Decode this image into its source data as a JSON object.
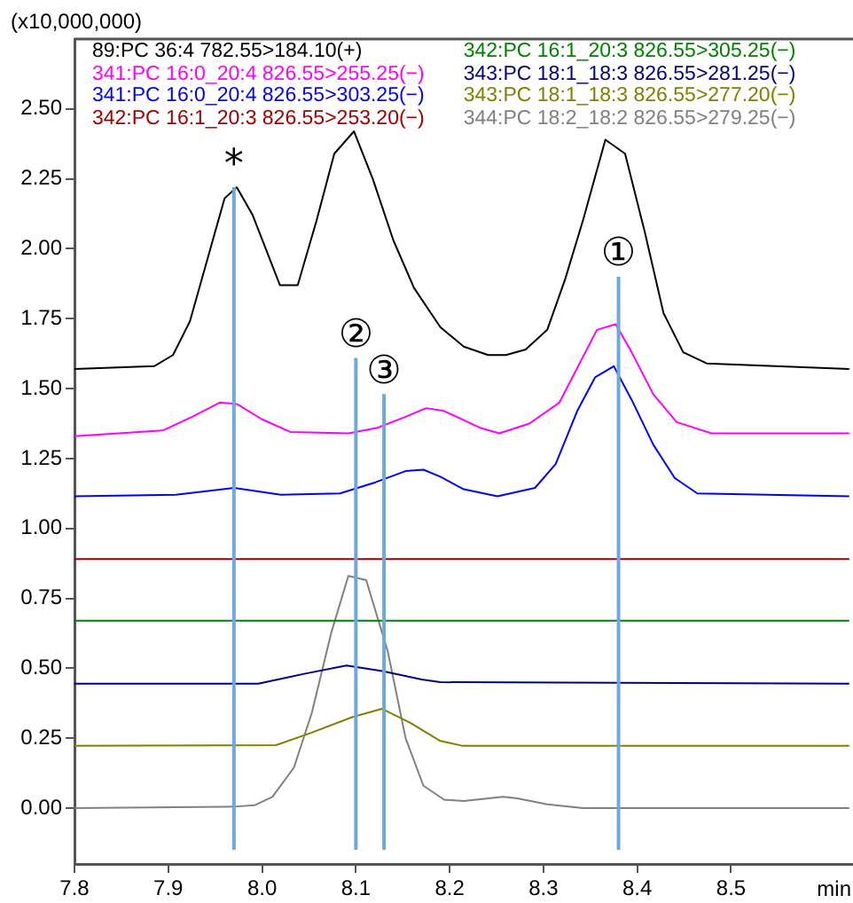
{
  "chart_data": {
    "type": "line",
    "xlabel": "min",
    "ylabel": "(x10,000,000)",
    "xlim": [
      7.8,
      8.63
    ],
    "ylim": [
      -0.2,
      2.75
    ],
    "xticks": [
      7.8,
      7.9,
      {
        "value": 8,
        "label": "8.0"
      },
      8.1,
      8.2,
      8.3,
      8.4,
      8.5
    ],
    "yticks": [
      {
        "value": 0,
        "label": "0.00"
      },
      {
        "value": 0.25,
        "label": "0.25"
      },
      {
        "value": 0.5,
        "label": "0.50"
      },
      {
        "value": 0.75,
        "label": "0.75"
      },
      {
        "value": 1,
        "label": "1.00"
      },
      {
        "value": 1.25,
        "label": "1.25"
      },
      {
        "value": 1.5,
        "label": "1.50"
      },
      {
        "value": 1.75,
        "label": "1.75"
      },
      {
        "value": 2,
        "label": "2.00"
      },
      {
        "value": 2.25,
        "label": "2.25"
      },
      {
        "value": 2.5,
        "label": "2.50"
      }
    ],
    "grid": false,
    "legend": "top",
    "marker": "none",
    "line_style": "solid",
    "series": [
      {
        "name": "89:PC 36:4 782.55>184.10(+)",
        "color": "#000000",
        "x": [
          7.8,
          7.885,
          7.905,
          7.923,
          7.96,
          7.973,
          7.99,
          8.019,
          8.038,
          8.058,
          8.077,
          8.098,
          8.118,
          8.14,
          8.162,
          8.19,
          8.215,
          8.241,
          8.26,
          8.281,
          8.304,
          8.323,
          8.342,
          8.366,
          8.387,
          8.408,
          8.428,
          8.449,
          8.474,
          8.626
        ],
        "values": [
          1.57,
          1.58,
          1.62,
          1.74,
          2.18,
          2.22,
          2.12,
          1.87,
          1.87,
          2.1,
          2.34,
          2.42,
          2.25,
          2.03,
          1.86,
          1.72,
          1.65,
          1.62,
          1.62,
          1.64,
          1.71,
          1.89,
          2.1,
          2.39,
          2.34,
          2.06,
          1.77,
          1.63,
          1.59,
          1.57
        ]
      },
      {
        "name": "341:PC 16:0_20:4 826.55>255.25(−)",
        "color": "#ff00ff",
        "x": [
          7.8,
          7.894,
          7.926,
          7.955,
          7.973,
          8.0,
          8.03,
          8.092,
          8.123,
          8.15,
          8.175,
          8.194,
          8.232,
          8.253,
          8.285,
          8.317,
          8.357,
          8.377,
          8.394,
          8.417,
          8.442,
          8.479,
          8.626
        ],
        "values": [
          1.33,
          1.35,
          1.4,
          1.45,
          1.445,
          1.39,
          1.345,
          1.34,
          1.36,
          1.395,
          1.43,
          1.42,
          1.36,
          1.34,
          1.375,
          1.45,
          1.71,
          1.73,
          1.63,
          1.48,
          1.38,
          1.34,
          1.34
        ]
      },
      {
        "name": "341:PC 16:0_20:4 826.55>303.25(−)",
        "color": "#0000ff",
        "x": [
          7.8,
          7.908,
          7.97,
          8.02,
          8.083,
          8.121,
          8.153,
          8.172,
          8.19,
          8.215,
          8.251,
          8.291,
          8.313,
          8.336,
          8.355,
          8.375,
          8.394,
          8.417,
          8.44,
          8.464,
          8.626
        ],
        "values": [
          1.115,
          1.12,
          1.145,
          1.12,
          1.125,
          1.165,
          1.205,
          1.21,
          1.185,
          1.14,
          1.115,
          1.145,
          1.23,
          1.42,
          1.54,
          1.58,
          1.46,
          1.3,
          1.18,
          1.125,
          1.115
        ]
      },
      {
        "name": "342:PC 16:1_20:3 826.55>253.20(−)",
        "color": "#a00000",
        "x": [
          7.8,
          8.626
        ],
        "values": [
          0.89,
          0.89
        ]
      },
      {
        "name": "342:PC 16:1_20:3 826.55>305.25(−)",
        "color": "#008000",
        "x": [
          7.8,
          8.626
        ],
        "values": [
          0.67,
          0.67
        ]
      },
      {
        "name": "343:PC 18:1_18:3 826.55>281.25(−)",
        "color": "#000080",
        "x": [
          7.8,
          7.996,
          8.045,
          8.09,
          8.128,
          8.17,
          8.19,
          8.626
        ],
        "values": [
          0.445,
          0.445,
          0.48,
          0.51,
          0.49,
          0.46,
          0.45,
          0.445
        ]
      },
      {
        "name": "343:PC 18:1_18:3 826.55>277.20(−)",
        "color": "#808000",
        "x": [
          7.8,
          8.015,
          8.053,
          8.096,
          8.128,
          8.158,
          8.19,
          8.213,
          8.626
        ],
        "values": [
          0.223,
          0.225,
          0.27,
          0.325,
          0.355,
          0.305,
          0.24,
          0.223,
          0.223
        ]
      },
      {
        "name": "344:PC 18:2_18:2 826.55>279.25(−)",
        "color": "#808080",
        "x": [
          7.8,
          7.97,
          7.992,
          8.011,
          8.034,
          8.053,
          8.074,
          8.092,
          8.111,
          8.134,
          8.153,
          8.172,
          8.194,
          8.215,
          8.257,
          8.272,
          8.304,
          8.342,
          8.626
        ],
        "values": [
          0,
          0.005,
          0.01,
          0.04,
          0.145,
          0.34,
          0.63,
          0.83,
          0.815,
          0.56,
          0.25,
          0.08,
          0.03,
          0.025,
          0.04,
          0.035,
          0.013,
          0,
          0
        ]
      }
    ],
    "ref_lines": [
      {
        "axis": "x",
        "value": 7.97,
        "color": "#6fa8dc"
      },
      {
        "axis": "x",
        "value": 8.1,
        "color": "#6fa8dc"
      },
      {
        "axis": "x",
        "value": 8.13,
        "color": "#6fa8dc"
      },
      {
        "axis": "x",
        "value": 8.38,
        "color": "#6fa8dc"
      }
    ],
    "annotations": [
      {
        "text": "*",
        "x": 7.97,
        "y": 2.22
      },
      {
        "text": "②",
        "x": 8.1,
        "y": 1.61
      },
      {
        "text": "③",
        "x": 8.13,
        "y": 1.48
      },
      {
        "text": "①",
        "x": 8.38,
        "y": 1.9
      }
    ]
  }
}
